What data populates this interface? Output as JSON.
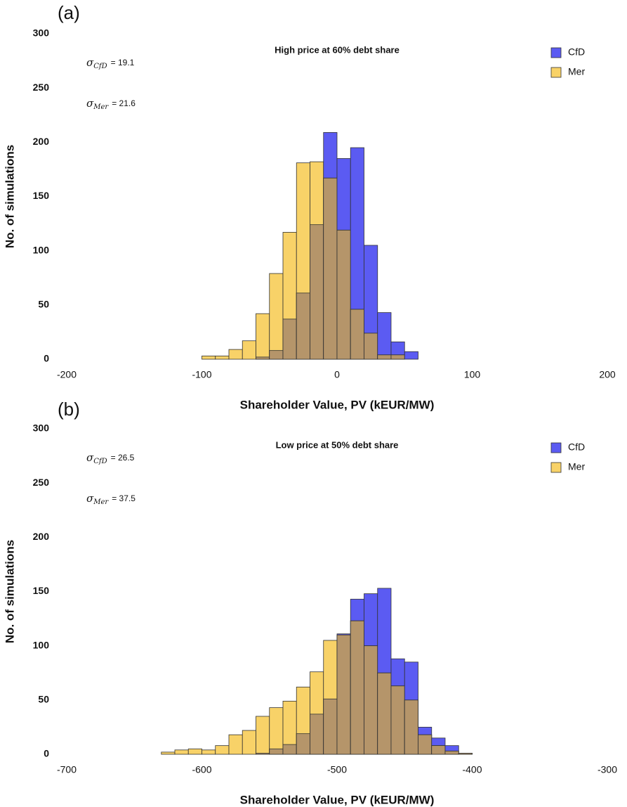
{
  "chart_data": [
    {
      "type": "histogram",
      "panel_label": "(a)",
      "title": "High price at 60% debt share",
      "annotations": [
        {
          "symbol": "σ",
          "sub": "CfD",
          "text": "= 19.1"
        },
        {
          "symbol": "σ",
          "sub": "Mer",
          "text": "= 21.6"
        }
      ],
      "xlabel": "Shareholder Value, PV (kEUR/MW)",
      "ylabel": "No. of simulations",
      "bins": [
        -100,
        -90,
        -80,
        -70,
        -60,
        -50,
        -40,
        -30,
        -20,
        -10,
        0,
        10,
        20,
        30,
        40,
        50,
        60
      ],
      "series": [
        {
          "name": "CfD",
          "color": "#5b5bf2",
          "values": [
            0,
            0,
            0,
            0,
            2,
            8,
            37,
            61,
            124,
            209,
            185,
            195,
            105,
            43,
            16,
            7
          ]
        },
        {
          "name": "Mer",
          "color": "#f8d268",
          "values": [
            3,
            3,
            9,
            17,
            42,
            79,
            117,
            181,
            182,
            167,
            119,
            46,
            24,
            4,
            4,
            0
          ]
        }
      ],
      "overlap_color": "#b5956a",
      "xlim": [
        -200,
        200
      ],
      "xticks": [
        -200,
        -100,
        0,
        100,
        200
      ],
      "ylim": [
        0,
        300
      ],
      "yticks": [
        0,
        50,
        100,
        150,
        200,
        250,
        300
      ],
      "legend": "upper right"
    },
    {
      "type": "histogram",
      "panel_label": "(b)",
      "title": "Low price at 50% debt share",
      "annotations": [
        {
          "symbol": "σ",
          "sub": "CfD",
          "text": "= 26.5"
        },
        {
          "symbol": "σ",
          "sub": "Mer",
          "text": "= 37.5"
        }
      ],
      "xlabel": "Shareholder Value, PV (kEUR/MW)",
      "ylabel": "No. of simulations",
      "bins": [
        -630,
        -620,
        -610,
        -600,
        -590,
        -580,
        -570,
        -560,
        -550,
        -540,
        -530,
        -520,
        -510,
        -500,
        -490,
        -480,
        -470,
        -460,
        -450,
        -440,
        -430,
        -420,
        -410,
        -400
      ],
      "series": [
        {
          "name": "CfD",
          "color": "#5b5bf2",
          "values": [
            0,
            0,
            0,
            0,
            0,
            0,
            0,
            1,
            5,
            9,
            19,
            37,
            51,
            111,
            143,
            148,
            153,
            88,
            85,
            25,
            15,
            8,
            1
          ]
        },
        {
          "name": "Mer",
          "color": "#f8d268",
          "values": [
            2,
            4,
            5,
            4,
            8,
            18,
            22,
            35,
            43,
            49,
            62,
            76,
            105,
            110,
            123,
            100,
            75,
            63,
            50,
            18,
            8,
            3,
            1
          ]
        }
      ],
      "overlap_color": "#b5956a",
      "xlim": [
        -700,
        -300
      ],
      "xticks": [
        -700,
        -600,
        -500,
        -400,
        -300
      ],
      "ylim": [
        0,
        300
      ],
      "yticks": [
        0,
        50,
        100,
        150,
        200,
        250,
        300
      ],
      "legend": "upper right"
    }
  ]
}
